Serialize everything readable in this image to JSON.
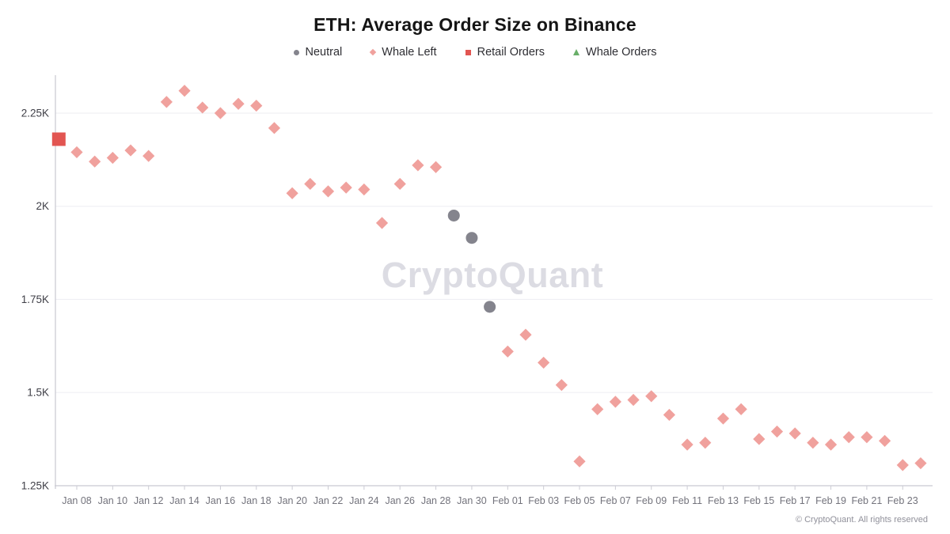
{
  "page": {
    "watermark": "CryptoQuant",
    "footer": "© CryptoQuant. All rights reserved"
  },
  "legend": [
    {
      "label": "Neutral",
      "marker": "circle",
      "color": "#84848d"
    },
    {
      "label": "Whale Left",
      "marker": "diamond",
      "color": "#f0a19d"
    },
    {
      "label": "Retail Orders",
      "marker": "square",
      "color": "#e25551"
    },
    {
      "label": "Whale Orders",
      "marker": "triangle",
      "color": "#69af69"
    }
  ],
  "chart_data": {
    "type": "scatter",
    "title": "ETH: Average Order Size on Binance",
    "xlabel": "",
    "ylabel": "",
    "grid": "horizontal",
    "legend_position": "top",
    "x": [
      "Jan 07",
      "Jan 08",
      "Jan 09",
      "Jan 10",
      "Jan 11",
      "Jan 12",
      "Jan 13",
      "Jan 14",
      "Jan 15",
      "Jan 16",
      "Jan 17",
      "Jan 18",
      "Jan 19",
      "Jan 20",
      "Jan 21",
      "Jan 22",
      "Jan 23",
      "Jan 24",
      "Jan 25",
      "Jan 26",
      "Jan 27",
      "Jan 28",
      "Jan 29",
      "Jan 30",
      "Jan 31",
      "Feb 01",
      "Feb 02",
      "Feb 03",
      "Feb 04",
      "Feb 05",
      "Feb 06",
      "Feb 07",
      "Feb 08",
      "Feb 09",
      "Feb 10",
      "Feb 11",
      "Feb 12",
      "Feb 13",
      "Feb 14",
      "Feb 15",
      "Feb 16",
      "Feb 17",
      "Feb 18",
      "Feb 19",
      "Feb 20",
      "Feb 21",
      "Feb 22",
      "Feb 23",
      "Feb 24"
    ],
    "x_axis": {
      "tick_labels": [
        "Jan 08",
        "Jan 10",
        "Jan 12",
        "Jan 14",
        "Jan 16",
        "Jan 18",
        "Jan 20",
        "Jan 22",
        "Jan 24",
        "Jan 26",
        "Jan 28",
        "Jan 30",
        "Feb 01",
        "Feb 03",
        "Feb 05",
        "Feb 07",
        "Feb 09",
        "Feb 11",
        "Feb 13",
        "Feb 15",
        "Feb 17",
        "Feb 19",
        "Feb 21",
        "Feb 23"
      ]
    },
    "y_axis": {
      "tick_labels": [
        "2.25K",
        "2K",
        "1.75K",
        "1.5K",
        "1.25K"
      ],
      "tick_values": [
        2250,
        2000,
        1750,
        1500,
        1250
      ],
      "min": 1250,
      "max": 2360
    },
    "series": [
      {
        "name": "Neutral",
        "marker": "circle",
        "color": "#84848d",
        "points": [
          [
            "Jan 29",
            1975
          ],
          [
            "Jan 30",
            1915
          ],
          [
            "Jan 31",
            1730
          ]
        ]
      },
      {
        "name": "Whale Left",
        "marker": "diamond",
        "color": "#f0a19d",
        "points": [
          [
            "Jan 08",
            2145
          ],
          [
            "Jan 09",
            2120
          ],
          [
            "Jan 10",
            2130
          ],
          [
            "Jan 11",
            2150
          ],
          [
            "Jan 12",
            2135
          ],
          [
            "Jan 13",
            2280
          ],
          [
            "Jan 14",
            2310
          ],
          [
            "Jan 15",
            2265
          ],
          [
            "Jan 16",
            2250
          ],
          [
            "Jan 17",
            2275
          ],
          [
            "Jan 18",
            2270
          ],
          [
            "Jan 19",
            2210
          ],
          [
            "Jan 20",
            2035
          ],
          [
            "Jan 21",
            2060
          ],
          [
            "Jan 22",
            2040
          ],
          [
            "Jan 23",
            2050
          ],
          [
            "Jan 24",
            2045
          ],
          [
            "Jan 25",
            1955
          ],
          [
            "Jan 26",
            2060
          ],
          [
            "Jan 27",
            2110
          ],
          [
            "Jan 28",
            2105
          ],
          [
            "Feb 01",
            1610
          ],
          [
            "Feb 02",
            1655
          ],
          [
            "Feb 03",
            1580
          ],
          [
            "Feb 04",
            1520
          ],
          [
            "Feb 05",
            1315
          ],
          [
            "Feb 06",
            1455
          ],
          [
            "Feb 07",
            1475
          ],
          [
            "Feb 08",
            1480
          ],
          [
            "Feb 09",
            1490
          ],
          [
            "Feb 10",
            1440
          ],
          [
            "Feb 11",
            1360
          ],
          [
            "Feb 12",
            1365
          ],
          [
            "Feb 13",
            1430
          ],
          [
            "Feb 14",
            1455
          ],
          [
            "Feb 15",
            1375
          ],
          [
            "Feb 16",
            1395
          ],
          [
            "Feb 17",
            1390
          ],
          [
            "Feb 18",
            1365
          ],
          [
            "Feb 19",
            1360
          ],
          [
            "Feb 20",
            1380
          ],
          [
            "Feb 21",
            1380
          ],
          [
            "Feb 22",
            1370
          ],
          [
            "Feb 23",
            1305
          ],
          [
            "Feb 24",
            1310
          ]
        ]
      },
      {
        "name": "Retail Orders",
        "marker": "square",
        "color": "#e25551",
        "points": [
          [
            "Jan 07",
            2180
          ]
        ]
      },
      {
        "name": "Whale Orders",
        "marker": "triangle",
        "color": "#69af69",
        "points": []
      }
    ]
  }
}
